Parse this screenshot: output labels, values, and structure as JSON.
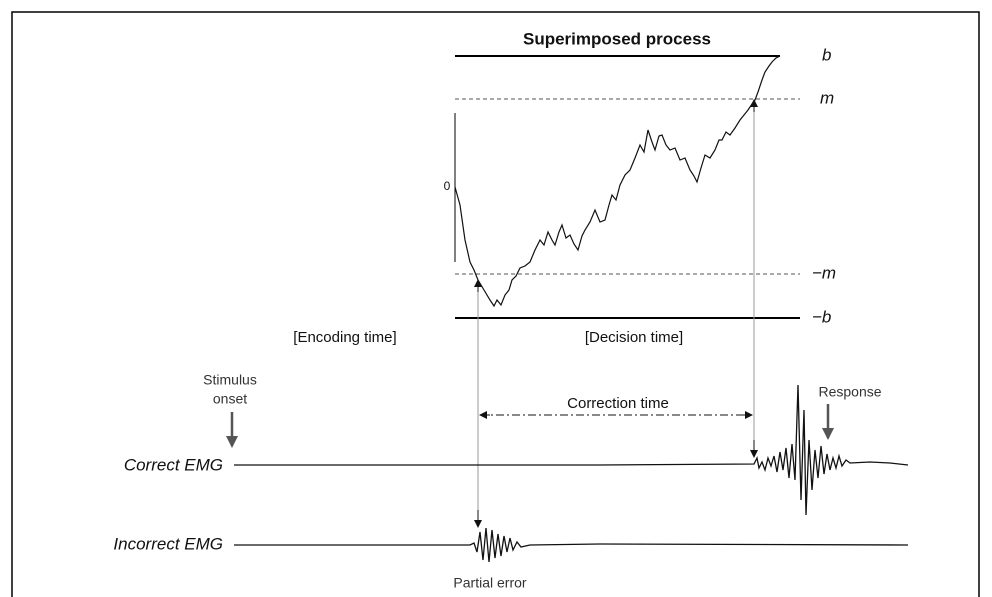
{
  "title": "Superimposed process",
  "thresholds": {
    "upper_bound": "b",
    "upper_marker": "m",
    "origin": "0",
    "lower_marker": "−m",
    "lower_bound": "−b"
  },
  "phases": {
    "encoding": "[Encoding time]",
    "decision": "[Decision time]",
    "correction": "Correction time"
  },
  "events": {
    "stimulus": [
      "Stimulus",
      "onset"
    ],
    "response": "Response",
    "partial_error": "Partial error"
  },
  "signals": {
    "correct": "Correct EMG",
    "incorrect": "Incorrect EMG"
  }
}
